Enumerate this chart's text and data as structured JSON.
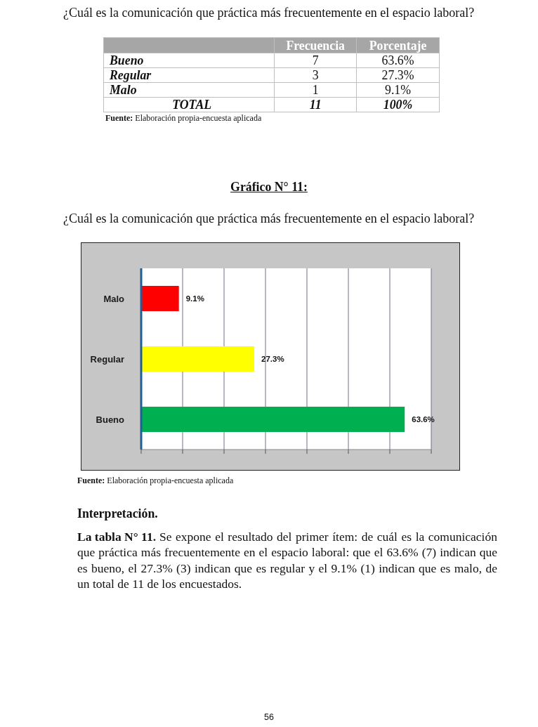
{
  "chart_data": {
    "type": "bar",
    "orientation": "horizontal",
    "title": "Gráfico N° 11:",
    "subtitle": "¿Cuál es la comunicación que práctica más frecuentemente en el espacio laboral?",
    "categories": [
      "Malo",
      "Regular",
      "Bueno"
    ],
    "values": [
      9.1,
      27.3,
      63.6
    ],
    "colors": [
      "#ff0000",
      "#ffff00",
      "#00b050"
    ],
    "value_labels": [
      "9.1%",
      "27.3%",
      "63.6%"
    ],
    "xlim": [
      0,
      70
    ],
    "xticks": [
      {
        "value": 0,
        "label": null
      },
      {
        "value": 10,
        "label": null
      },
      {
        "value": 20,
        "label": null
      },
      {
        "value": 30,
        "label": null
      },
      {
        "value": 40,
        "label": null
      },
      {
        "value": 50,
        "label": null
      },
      {
        "value": 60,
        "label": null
      },
      {
        "value": 70,
        "label": null
      }
    ],
    "grid": "x",
    "tick_labels": "y",
    "annotations": [
      "¿Cuál es la comunicación que práctica más frecuentemente en el espacio laboral?",
      "Frecuencia",
      "Porcentaje",
      "Bueno",
      "7",
      "63.6%",
      "Regular",
      "3",
      "27.3%",
      "Malo",
      "1",
      "9.1%",
      "TOTAL",
      "11",
      "100%",
      "Fuente: Elaboración propia-encuesta aplicada",
      "Fuente: Elaboración propia-encuesta aplicada",
      "Interpretación.",
      "La tabla N° 11.",
      "Se expone el resultado del primer ítem: de cuál es la comunicación",
      "que práctica más frecuentemente en el espacio laboral: que el 63.6% (7) indican que",
      "es bueno, el 27.3% (3) indican que es regular y el 9.1% (1) indican que es malo, de",
      "un total de 11 de los encuestados.",
      "56"
    ]
  }
}
